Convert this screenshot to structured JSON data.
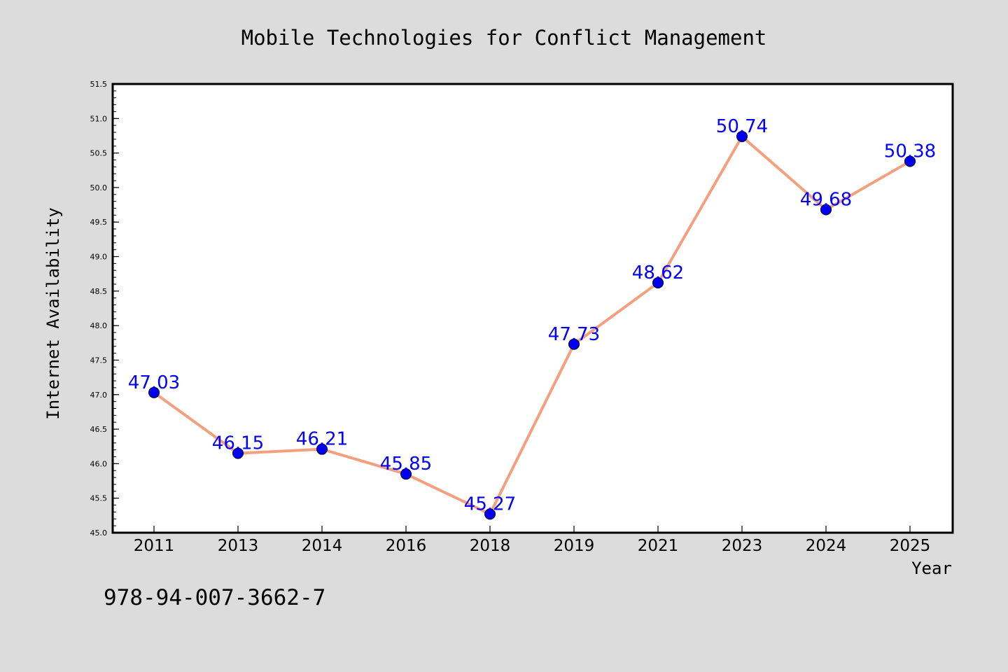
{
  "chart_data": {
    "type": "line",
    "title": "Mobile Technologies for Conflict Management",
    "xlabel": "Year",
    "ylabel": "Internet Availability",
    "categories": [
      "2011",
      "2013",
      "2014",
      "2016",
      "2018",
      "2019",
      "2021",
      "2023",
      "2024",
      "2025"
    ],
    "series": [
      {
        "values": [
          47.03,
          46.15,
          46.21,
          45.85,
          45.27,
          47.73,
          48.62,
          50.74,
          49.68,
          50.38
        ]
      }
    ],
    "data_labels": [
      "47.03",
      "46.15",
      "46.21",
      "45.85",
      "45.27",
      "47.73",
      "48.62",
      "50.74",
      "49.68",
      "50.38"
    ],
    "ylim": [
      45.0,
      51.5
    ],
    "yticks": [
      "45.0",
      "45.5",
      "46.0",
      "46.5",
      "47.0",
      "47.5",
      "48.0",
      "48.5",
      "49.0",
      "49.5",
      "50.0",
      "50.5",
      "51.0",
      "51.5"
    ],
    "grid": false,
    "colors": {
      "line": "#f4a07e",
      "marker": "#0000ee",
      "label": "#0000ff",
      "background": "#dcdcdc",
      "plot_background": "#ffffff"
    }
  },
  "annotation": "978-94-007-3662-7"
}
